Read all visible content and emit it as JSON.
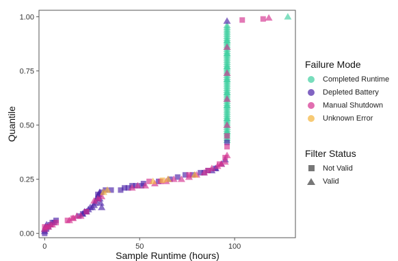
{
  "chart_data": {
    "type": "scatter",
    "xlabel": "Sample Runtime (hours)",
    "ylabel": "Quantile",
    "xlim": [
      -3,
      132
    ],
    "ylim": [
      -0.02,
      1.03
    ],
    "x_ticks": [
      "0",
      "50",
      "100"
    ],
    "x_tick_values": [
      0,
      50,
      100
    ],
    "y_ticks": [
      "0.00",
      "0.25",
      "0.50",
      "0.75",
      "1.00"
    ],
    "y_tick_values": [
      0,
      0.25,
      0.5,
      0.75,
      1
    ],
    "grid": false,
    "legend_position": "right",
    "colors": {
      "completed": "#3fcf9f",
      "depleted": "#4b22a8",
      "manual": "#d4318f",
      "unknown": "#f4b43b"
    },
    "legends": [
      {
        "title": "Failure Mode",
        "key": "color",
        "items": [
          {
            "label": "Completed Runtime",
            "color": "#3fcf9f"
          },
          {
            "label": "Depleted Battery",
            "color": "#4b22a8"
          },
          {
            "label": "Manual Shutdown",
            "color": "#d4318f"
          },
          {
            "label": "Unknown Error",
            "color": "#f4b43b"
          }
        ]
      },
      {
        "title": "Filter Status",
        "key": "shape",
        "items": [
          {
            "label": "Not Valid",
            "shape": "square"
          },
          {
            "label": "Valid",
            "shape": "triangle"
          }
        ]
      }
    ],
    "series": [
      {
        "name": "Completed Runtime",
        "color": "#3fcf9f",
        "shape": "triangle",
        "x": [
          96,
          96,
          96,
          96,
          96,
          96,
          96,
          96,
          96,
          96,
          96,
          96,
          96,
          96,
          96,
          96,
          96,
          96,
          96,
          96,
          96,
          96,
          96,
          96,
          96,
          96,
          96,
          96,
          96,
          96,
          96,
          96,
          96,
          96,
          96,
          96,
          96,
          96,
          96,
          96,
          96,
          96,
          96,
          96,
          96,
          96,
          96,
          96,
          96,
          96,
          96,
          96,
          96,
          96,
          96,
          96,
          96,
          96,
          96,
          96,
          96,
          96,
          128
        ],
        "y": [
          0.43,
          0.44,
          0.45,
          0.46,
          0.47,
          0.48,
          0.49,
          0.5,
          0.51,
          0.52,
          0.53,
          0.54,
          0.55,
          0.56,
          0.57,
          0.58,
          0.59,
          0.6,
          0.61,
          0.62,
          0.63,
          0.64,
          0.65,
          0.66,
          0.67,
          0.68,
          0.69,
          0.7,
          0.71,
          0.72,
          0.73,
          0.74,
          0.75,
          0.76,
          0.77,
          0.78,
          0.79,
          0.8,
          0.81,
          0.82,
          0.83,
          0.84,
          0.85,
          0.86,
          0.87,
          0.88,
          0.89,
          0.9,
          0.91,
          0.92,
          0.93,
          0.94,
          0.95,
          0.96,
          0.47,
          0.53,
          0.59,
          0.65,
          0.71,
          0.77,
          0.83,
          0.89,
          1.0
        ]
      },
      {
        "name": "Depleted Battery",
        "color": "#4b22a8",
        "shape": "triangle",
        "x": [
          0,
          0,
          0.5,
          1,
          20,
          21,
          22,
          23,
          24,
          25,
          26,
          26.5,
          27,
          27.5,
          28,
          28.5,
          29,
          29,
          29.5,
          30,
          88,
          90,
          93,
          95,
          96
        ],
        "y": [
          0.01,
          0.02,
          0.03,
          0.04,
          0.09,
          0.1,
          0.1,
          0.11,
          0.12,
          0.12,
          0.13,
          0.14,
          0.15,
          0.16,
          0.17,
          0.18,
          0.19,
          0.16,
          0.14,
          0.12,
          0.29,
          0.3,
          0.32,
          0.34,
          0.98
        ]
      },
      {
        "name": "Depleted Battery",
        "color": "#4b22a8",
        "shape": "square",
        "x": [
          0,
          1,
          2,
          3,
          4,
          5,
          6,
          18,
          20,
          22,
          28,
          30,
          32,
          35,
          40,
          42,
          44,
          46,
          48,
          51,
          52,
          60,
          66,
          70,
          74,
          78,
          82,
          84,
          86,
          90,
          96
        ],
        "y": [
          0,
          0.02,
          0.03,
          0.04,
          0.05,
          0.05,
          0.06,
          0.08,
          0.09,
          0.1,
          0.18,
          0.19,
          0.2,
          0.2,
          0.2,
          0.21,
          0.21,
          0.22,
          0.22,
          0.22,
          0.23,
          0.24,
          0.25,
          0.26,
          0.27,
          0.27,
          0.28,
          0.28,
          0.29,
          0.3,
          0.42
        ]
      },
      {
        "name": "Manual Shutdown",
        "color": "#d4318f",
        "shape": "triangle",
        "x": [
          0,
          1,
          2,
          3,
          4,
          13,
          15,
          17,
          19,
          26,
          28,
          30,
          46,
          49,
          53,
          58,
          64,
          68,
          72,
          76,
          80,
          84,
          88,
          91,
          93,
          95,
          96,
          96,
          96,
          96,
          96,
          118
        ],
        "y": [
          0.02,
          0.03,
          0.03,
          0.04,
          0.04,
          0.06,
          0.07,
          0.08,
          0.08,
          0.15,
          0.16,
          0.17,
          0.21,
          0.22,
          0.22,
          0.23,
          0.24,
          0.25,
          0.25,
          0.26,
          0.27,
          0.28,
          0.3,
          0.31,
          0.32,
          0.33,
          0.36,
          0.5,
          0.62,
          0.74,
          0.86,
          0.995
        ]
      },
      {
        "name": "Manual Shutdown",
        "color": "#d4318f",
        "shape": "square",
        "x": [
          0,
          6,
          12,
          15,
          22,
          55,
          61,
          76,
          86,
          92,
          95,
          96,
          96,
          104,
          115
        ],
        "y": [
          0.03,
          0.05,
          0.06,
          0.07,
          0.1,
          0.24,
          0.24,
          0.27,
          0.29,
          0.32,
          0.35,
          0.4,
          0.45,
          0.985,
          0.99
        ]
      },
      {
        "name": "Unknown Error",
        "color": "#f4b43b",
        "shape": "triangle",
        "x": [
          31,
          33,
          57,
          65,
          79
        ],
        "y": [
          0.19,
          0.2,
          0.24,
          0.25,
          0.27
        ]
      },
      {
        "name": "Unknown Error",
        "color": "#f4b43b",
        "shape": "square",
        "x": [
          62
        ],
        "y": [
          0.245
        ]
      }
    ]
  }
}
